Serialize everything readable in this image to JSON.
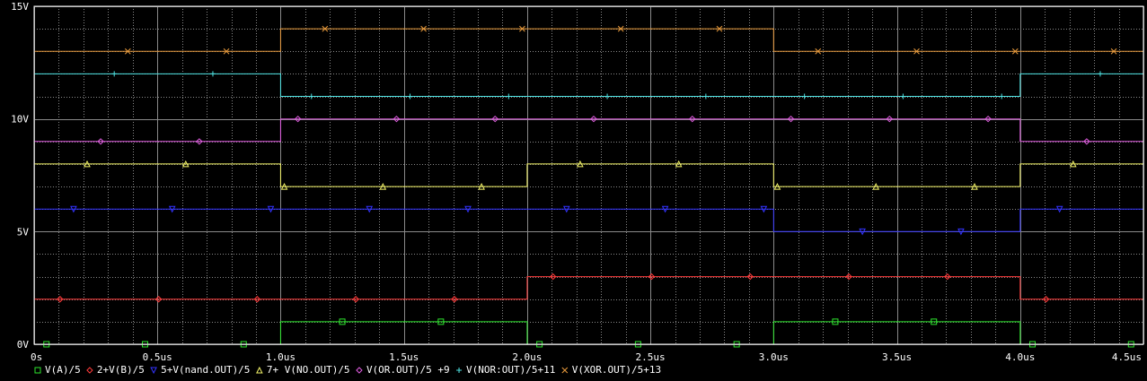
{
  "chart_data": {
    "type": "line",
    "title": "",
    "xlabel": "",
    "ylabel": "",
    "xlim": [
      0,
      4.5
    ],
    "ylim": [
      0,
      15
    ],
    "x_unit": "us",
    "y_unit": "V",
    "grid": true,
    "background": "#000000",
    "axis_color": "#ffffff",
    "grid_color": "#8a8a8a",
    "xticks": [
      {
        "v": 0,
        "label": "0s"
      },
      {
        "v": 0.5,
        "label": "0.5us"
      },
      {
        "v": 1.0,
        "label": "1.0us"
      },
      {
        "v": 1.5,
        "label": "1.5us"
      },
      {
        "v": 2.0,
        "label": "2.0us"
      },
      {
        "v": 2.5,
        "label": "2.5us"
      },
      {
        "v": 3.0,
        "label": "3.0us"
      },
      {
        "v": 3.5,
        "label": "3.5us"
      },
      {
        "v": 4.0,
        "label": "4.0us"
      },
      {
        "v": 4.5,
        "label": "4.5us"
      }
    ],
    "yticks": [
      {
        "v": 0,
        "label": "0V"
      },
      {
        "v": 5,
        "label": "5V"
      },
      {
        "v": 10,
        "label": "10V"
      },
      {
        "v": 15,
        "label": "15V"
      }
    ],
    "series": [
      {
        "name": "V(A)/5",
        "color": "#2ee62e",
        "marker": "square",
        "x": [
          0,
          1,
          1,
          2,
          2,
          3,
          3,
          4,
          4,
          4.5
        ],
        "y": [
          0,
          0,
          1,
          1,
          0,
          0,
          1,
          1,
          0,
          0
        ]
      },
      {
        "name": "2+V(B)/5",
        "color": "#ff3b3b",
        "marker": "diamond",
        "x": [
          0,
          2,
          2,
          4,
          4,
          4.5
        ],
        "y": [
          2,
          2,
          3,
          3,
          2,
          2
        ]
      },
      {
        "name": "5+V(nand.OUT)/5",
        "color": "#3333ff",
        "marker": "tri-down",
        "x": [
          0,
          3,
          3,
          4,
          4,
          4.5
        ],
        "y": [
          6,
          6,
          5,
          5,
          6,
          6
        ]
      },
      {
        "name": "7+ V(NO.OUT)/5",
        "color": "#f5f56a",
        "marker": "tri-up",
        "x": [
          0,
          1,
          1,
          2,
          2,
          3,
          3,
          4,
          4,
          4.5
        ],
        "y": [
          8,
          8,
          7,
          7,
          8,
          8,
          7,
          7,
          8,
          8
        ]
      },
      {
        "name": "V(OR.OUT)/5 +9",
        "color": "#e05ce0",
        "marker": "diamond",
        "x": [
          0,
          1,
          1,
          4,
          4,
          4.5
        ],
        "y": [
          9,
          9,
          10,
          10,
          9,
          9
        ]
      },
      {
        "name": "V(NOR:OUT)/5+11",
        "color": "#4fe3e3",
        "marker": "plus",
        "x": [
          0,
          1,
          1,
          4,
          4,
          4.5
        ],
        "y": [
          12,
          12,
          11,
          11,
          12,
          12
        ]
      },
      {
        "name": "V(XOR.OUT)/5+13",
        "color": "#e89a3c",
        "marker": "x",
        "x": [
          0,
          1,
          1,
          3,
          3,
          4.5
        ],
        "y": [
          13,
          13,
          14,
          14,
          13,
          13
        ]
      }
    ],
    "legend_position": "bottom"
  }
}
